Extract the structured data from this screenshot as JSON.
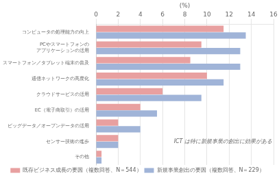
{
  "chart_data": {
    "type": "bar",
    "orientation": "horizontal",
    "categories": [
      "コンピュータの処理能力の向上",
      "PCやスマートフォンの\nアプリケーションの活用",
      "スマートフォン／タブレット端末の普及",
      "通信ネットワークの高度化",
      "クラウドサービスの活用",
      "EC（電子商取引）の活用",
      "ビッグデータ／オープンデータの活用",
      "センサー技術の進歩",
      "その他"
    ],
    "series": [
      {
        "name": "既存ビジネス成長の要因（複数回答、N＝544）",
        "color": "#e8a0a0",
        "values": [
          11.5,
          9.5,
          8.5,
          10.0,
          6.0,
          4.0,
          2.0,
          2.0,
          0.5
        ]
      },
      {
        "name": "新規事業創出の要因（複数回答、N＝229）",
        "color": "#a0b4d8",
        "values": [
          13.5,
          13.0,
          13.0,
          11.5,
          9.5,
          5.5,
          4.0,
          2.0,
          0.5
        ]
      }
    ],
    "xlim": [
      0,
      16
    ],
    "xticks": [
      0,
      2,
      4,
      6,
      8,
      10,
      12,
      14,
      16
    ],
    "xlabel": "(%)",
    "annotation": "ICT は特に新規事業の創出に効果がある",
    "grid": true,
    "legend": "bottom"
  }
}
